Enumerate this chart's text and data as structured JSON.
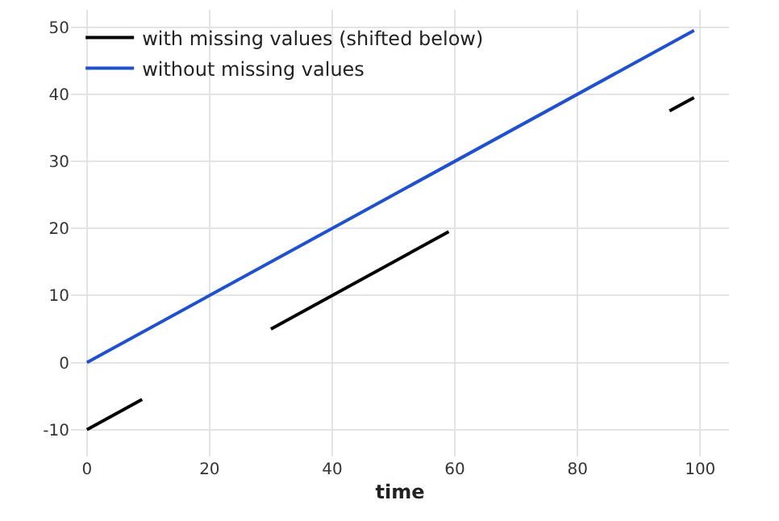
{
  "chart_data": {
    "type": "line",
    "xlabel": "time",
    "xlim": [
      -2.6,
      104.7
    ],
    "xticks": [
      0,
      20,
      40,
      60,
      80,
      100
    ],
    "ylim": [
      -14,
      52.6
    ],
    "yticks": [
      -10,
      0,
      10,
      20,
      30,
      40,
      50
    ],
    "grid": true,
    "legend": "top left",
    "marker": "none",
    "line_style": "solid",
    "series": [
      {
        "name": "with missing values (shifted below)",
        "color": "#000000",
        "x": [
          0,
          9,
          20,
          30,
          59,
          80,
          95,
          99
        ],
        "values": [
          -10,
          -5.5,
          null,
          5,
          19.5,
          null,
          37.5,
          39.5
        ]
      },
      {
        "name": "without missing values",
        "color": "#1f50d0",
        "x": [
          0,
          99
        ],
        "values": [
          0,
          49.5
        ]
      }
    ]
  }
}
